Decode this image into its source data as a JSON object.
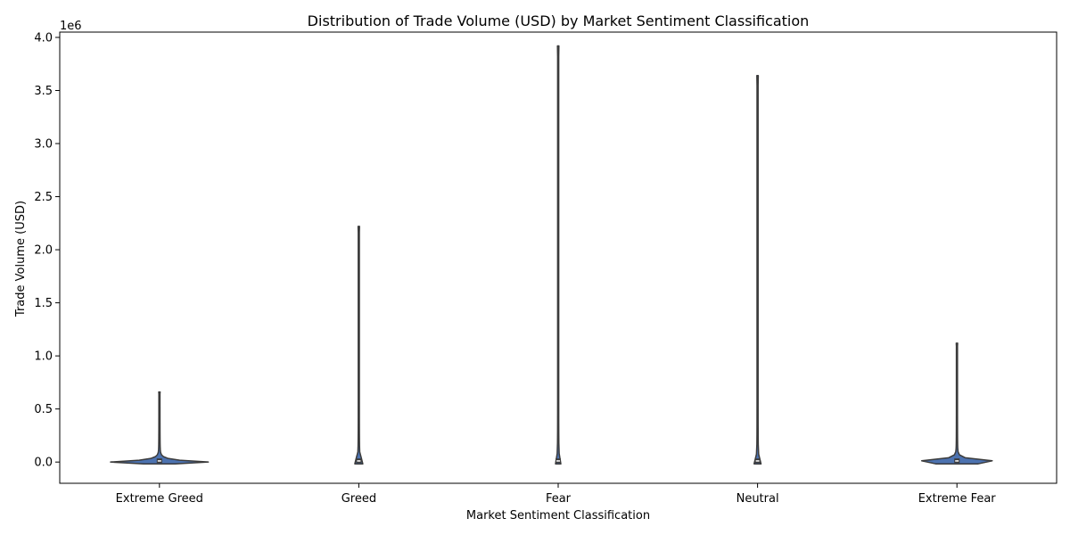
{
  "chart_data": {
    "type": "violin",
    "title": "Distribution of Trade Volume (USD) by Market Sentiment Classification",
    "xlabel": "Market Sentiment Classification",
    "ylabel": "Trade Volume (USD)",
    "y_offset_label": "1e6",
    "ylim": [
      -0.2,
      4.05
    ],
    "yticks": [
      0.0,
      0.5,
      1.0,
      1.5,
      2.0,
      2.5,
      3.0,
      3.5,
      4.0
    ],
    "ytick_labels": [
      "0.0",
      "0.5",
      "1.0",
      "1.5",
      "2.0",
      "2.5",
      "3.0",
      "3.5",
      "4.0"
    ],
    "categories": [
      "Extreme Greed",
      "Greed",
      "Fear",
      "Neutral",
      "Extreme Fear"
    ],
    "max_values": [
      0.66,
      2.22,
      3.92,
      3.64,
      1.12
    ],
    "min_values": [
      0.0,
      0.0,
      0.0,
      0.0,
      0.0
    ],
    "relative_width": [
      0.6,
      0.15,
      0.1,
      0.13,
      0.8
    ],
    "colors": {
      "violin_fill": "#4c72b0",
      "violin_edge": "#3b3b3b",
      "box": "#3b3b3b",
      "median": "#ffffff"
    },
    "grid": false,
    "legend": "none"
  }
}
